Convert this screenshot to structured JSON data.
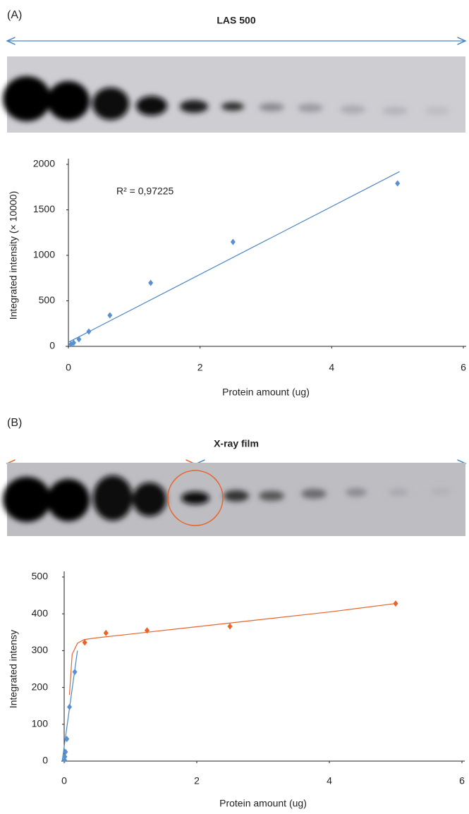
{
  "chart_data": [
    {
      "type": "scatter",
      "panel": "(A)",
      "heading": "LAS 500",
      "xlabel": "Protein amount (ug)",
      "ylabel": "Integrated intensity (× 10000)",
      "annotations": [
        "R² = 0,97225"
      ],
      "xlim": [
        0,
        6
      ],
      "xticks": [
        0,
        2,
        4,
        6
      ],
      "ylim": [
        0,
        2000
      ],
      "yticks": [
        0,
        500,
        1000,
        1500,
        2000
      ],
      "series": [
        {
          "type": "scatter",
          "color": "#5b8fd0",
          "x": [
            0.04,
            0.08,
            0.16,
            0.31,
            0.63,
            1.25,
            2.5,
            5
          ],
          "values": [
            23,
            39,
            78,
            163,
            341,
            698,
            1147,
            1791
          ]
        },
        {
          "type": "line",
          "color": "#4a86c5",
          "x": [
            0,
            5.03
          ],
          "values": [
            45,
            1920
          ]
        }
      ]
    },
    {
      "type": "scatter",
      "panel": "(B)",
      "heading": "X-ray film",
      "xlabel": "Protein amount (ug)",
      "ylabel": "Integrated intensy",
      "xlim": [
        0,
        6
      ],
      "xticks": [
        0,
        2,
        4,
        6
      ],
      "ylim": [
        0,
        500
      ],
      "yticks": [
        0,
        100,
        200,
        300,
        400,
        500
      ],
      "series": [
        {
          "type": "scatter",
          "color": "#5b8fd0",
          "x": [
            0.005,
            0.01,
            0.02,
            0.04,
            0.08,
            0.16
          ],
          "values": [
            3,
            12,
            25,
            60,
            147,
            242
          ]
        },
        {
          "type": "scatter",
          "color": "#e8642c",
          "x": [
            0.31,
            0.63,
            1.25,
            2.5,
            5
          ],
          "values": [
            322,
            348,
            355,
            366,
            428
          ]
        },
        {
          "type": "line",
          "color": "#4a86c5",
          "x": [
            -0.03,
            0.2
          ],
          "values": [
            0,
            300
          ]
        },
        {
          "type": "line",
          "color": "#e8642c",
          "x": [
            0.08,
            0.12,
            0.2,
            0.3,
            0.5,
            1,
            2,
            3,
            4,
            5
          ],
          "values": [
            180,
            290,
            320,
            330,
            335,
            345,
            365,
            385,
            405,
            428
          ]
        }
      ]
    }
  ]
}
